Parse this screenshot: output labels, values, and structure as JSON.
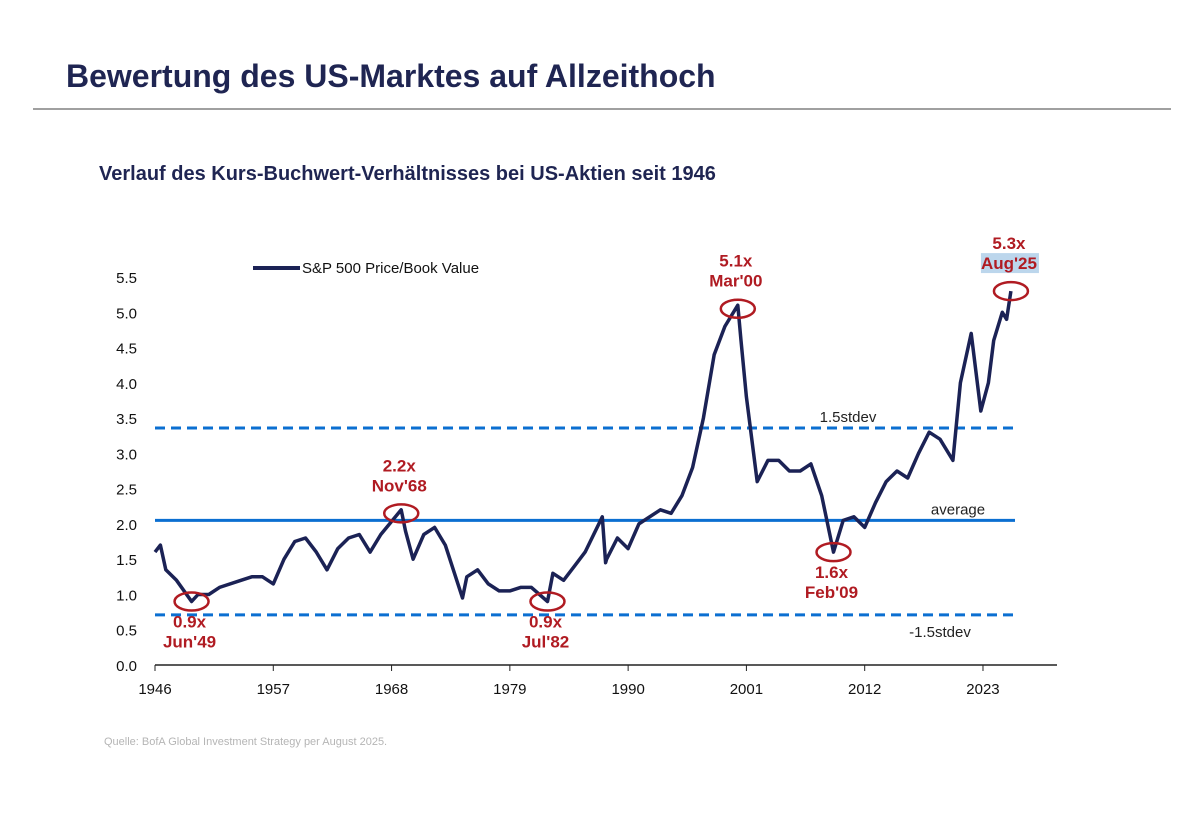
{
  "header": {
    "title": "Bewertung des US-Marktes auf Allzeithoch",
    "subtitle": "Verlauf des Kurs-Buchwert-Verhältnisses bei US-Aktien seit 1946"
  },
  "source": "Quelle: BofA Global Investment Strategy per August 2025.",
  "colors": {
    "series": "#1b2255",
    "lines": "#0b6fd1",
    "annotation": "#b01b22",
    "title": "#1f2552"
  },
  "chart_data": {
    "type": "line",
    "title": "Verlauf des Kurs-Buchwert-Verhältnisses bei US-Aktien seit 1946",
    "legend": [
      "S&P 500 Price/Book Value"
    ],
    "legend_position": "top-left",
    "xlim": [
      1946,
      2029
    ],
    "ylim": [
      0,
      5.5
    ],
    "x_ticks": [
      "1946",
      "1957",
      "1968",
      "1979",
      "1990",
      "2001",
      "2012",
      "2023"
    ],
    "y_ticks": [
      "0.0",
      "0.5",
      "1.0",
      "1.5",
      "2.0",
      "2.5",
      "3.0",
      "3.5",
      "4.0",
      "4.5",
      "5.0",
      "5.5"
    ],
    "reference_lines": [
      {
        "label": "1.5stdev",
        "value": 3.36,
        "style": "dashed"
      },
      {
        "label": "average",
        "value": 2.05,
        "style": "solid"
      },
      {
        "label": "-1.5stdev",
        "value": 0.71,
        "style": "dashed"
      }
    ],
    "annotations": [
      {
        "value": "0.9x",
        "date": "Jun'49",
        "x": 1949.4,
        "y": 0.9,
        "pos": "below"
      },
      {
        "value": "2.2x",
        "date": "Nov'68",
        "x": 1968.9,
        "y": 2.15,
        "pos": "above"
      },
      {
        "value": "0.9x",
        "date": "Jul'82",
        "x": 1982.5,
        "y": 0.9,
        "pos": "below"
      },
      {
        "value": "5.1x",
        "date": "Mar'00",
        "x": 2000.2,
        "y": 5.05,
        "pos": "above"
      },
      {
        "value": "1.6x",
        "date": "Feb'09",
        "x": 2009.1,
        "y": 1.6,
        "pos": "below"
      },
      {
        "value": "5.3x",
        "date": "Aug'25",
        "x": 2025.6,
        "y": 5.3,
        "pos": "above"
      }
    ],
    "series": [
      {
        "name": "S&P 500 Price/Book Value",
        "x": [
          1946,
          1946.5,
          1947,
          1948,
          1949.4,
          1950,
          1951,
          1952,
          1954,
          1955,
          1956,
          1957,
          1958,
          1959,
          1960,
          1961,
          1962,
          1963,
          1964,
          1965,
          1966,
          1967,
          1968.9,
          1969.3,
          1970,
          1971,
          1972,
          1973,
          1974.6,
          1975,
          1976,
          1977,
          1978,
          1979,
          1980,
          1981,
          1982.5,
          1983,
          1984,
          1985,
          1986,
          1987.6,
          1987.9,
          1988,
          1989,
          1990,
          1991,
          1993,
          1994,
          1995,
          1996,
          1997,
          1998,
          1999,
          2000.2,
          2000.5,
          2001,
          2002,
          2003,
          2004,
          2005,
          2006,
          2007,
          2008,
          2009.1,
          2010,
          2011,
          2012,
          2013,
          2014,
          2015,
          2016,
          2017,
          2018,
          2019,
          2020.2,
          2020.9,
          2021.9,
          2022.8,
          2023.5,
          2024,
          2024.8,
          2025.2,
          2025.6
        ],
        "y": [
          1.6,
          1.7,
          1.35,
          1.2,
          0.9,
          1.0,
          1.0,
          1.1,
          1.2,
          1.25,
          1.25,
          1.15,
          1.5,
          1.75,
          1.8,
          1.6,
          1.35,
          1.65,
          1.8,
          1.85,
          1.6,
          1.85,
          2.2,
          1.9,
          1.5,
          1.85,
          1.95,
          1.7,
          0.95,
          1.25,
          1.35,
          1.15,
          1.05,
          1.05,
          1.1,
          1.1,
          0.9,
          1.3,
          1.2,
          1.4,
          1.6,
          2.1,
          1.45,
          1.5,
          1.8,
          1.65,
          2.0,
          2.2,
          2.15,
          2.4,
          2.8,
          3.5,
          4.4,
          4.8,
          5.1,
          4.6,
          3.8,
          2.6,
          2.9,
          2.9,
          2.75,
          2.75,
          2.85,
          2.4,
          1.6,
          2.05,
          2.1,
          1.95,
          2.3,
          2.6,
          2.75,
          2.65,
          3.0,
          3.3,
          3.2,
          2.9,
          4.0,
          4.7,
          3.6,
          4.0,
          4.6,
          5.0,
          4.9,
          5.3
        ]
      }
    ]
  }
}
